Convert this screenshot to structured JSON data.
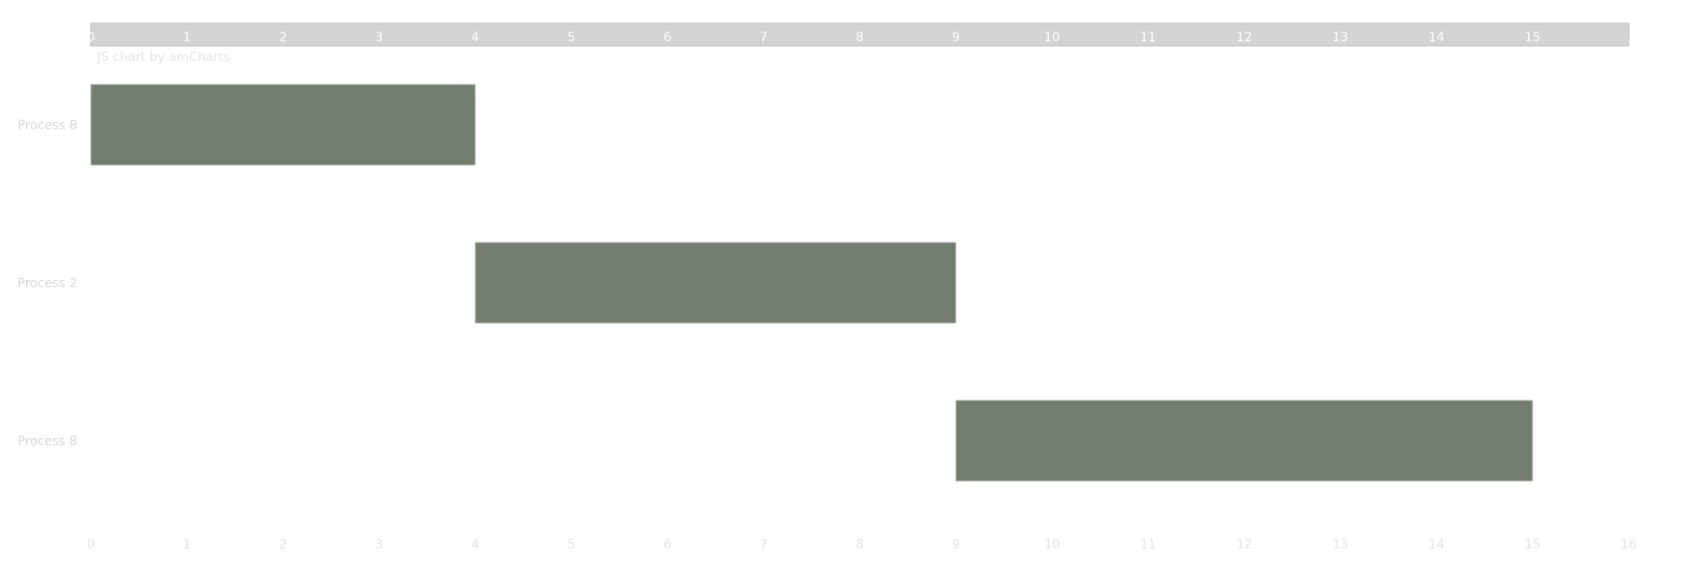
{
  "chart_data": {
    "type": "bar",
    "orientation": "horizontal",
    "subtype": "gantt",
    "categories": [
      "Process 8",
      "Process 2",
      "Process 8"
    ],
    "segments": [
      {
        "category_index": 0,
        "start": 0,
        "end": 4
      },
      {
        "category_index": 1,
        "start": 4,
        "end": 9
      },
      {
        "category_index": 2,
        "start": 9,
        "end": 15
      }
    ],
    "xlim": [
      0,
      16
    ],
    "x_ticks_top": [
      "0",
      "1",
      "2",
      "3",
      "4",
      "5",
      "6",
      "7",
      "8",
      "9",
      "10",
      "11",
      "12",
      "13",
      "14",
      "15"
    ],
    "x_ticks_bottom": [
      "0",
      "1",
      "2",
      "3",
      "4",
      "5",
      "6",
      "7",
      "8",
      "9",
      "10",
      "11",
      "12",
      "13",
      "14",
      "15",
      "16"
    ],
    "title": "",
    "xlabel": "",
    "ylabel": "",
    "grid": false,
    "legend": "none",
    "credit": "JS chart by amCharts",
    "colors": {
      "bar": "#737d6f",
      "scrollbar_bg": "#d3d3d3",
      "scrollbar_border": "#b8b8b8"
    }
  }
}
